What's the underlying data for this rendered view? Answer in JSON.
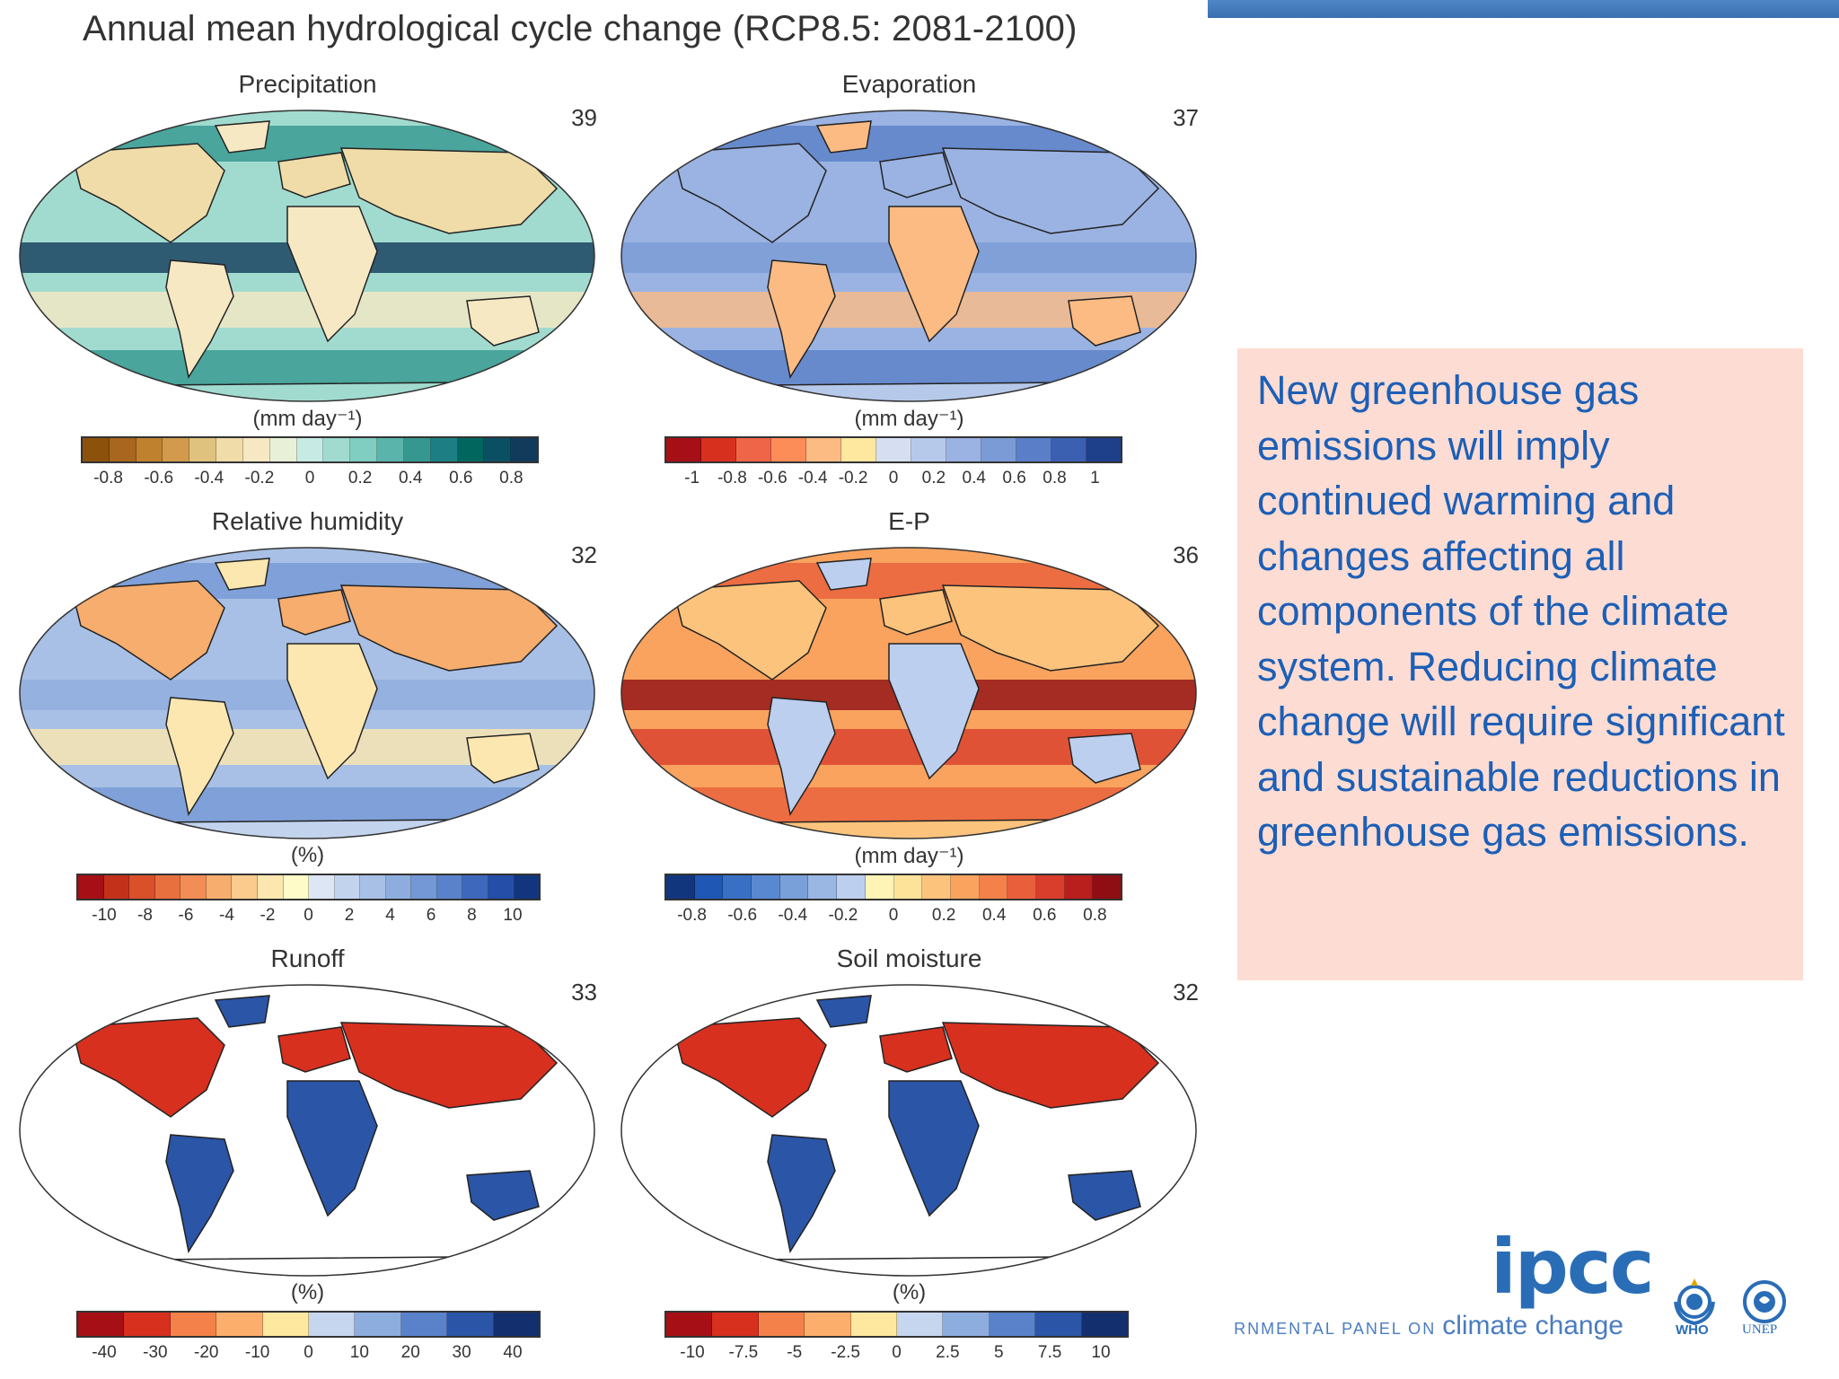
{
  "slide": {
    "figure_title": "Annual mean hydrological cycle change (RCP8.5: 2081-2100)",
    "text_box": "New greenhouse gas emissions will imply continued warming and changes affecting all components of the climate system. Reducing climate change will require significant and sustainable reductions in greenhouse gas emissions.",
    "accent_color": "#1c5fb6",
    "text_box_background": "#fddcd3"
  },
  "panels": [
    {
      "title": "Precipitation",
      "count": "39",
      "unit": "(mm day⁻¹)",
      "ticks": [
        "-0.8",
        "-0.6",
        "-0.4",
        "-0.2",
        "0",
        "0.2",
        "0.4",
        "0.6",
        "0.8"
      ],
      "colors": [
        "#8c510a",
        "#a8661e",
        "#bf812d",
        "#d19a4c",
        "#dfc27d",
        "#efdca8",
        "#f6e8c3",
        "#e8f1d8",
        "#c7eae5",
        "#a1dbd0",
        "#80cdc1",
        "#5ab4ac",
        "#35978f",
        "#1d7f83",
        "#01665e",
        "#0b4f63",
        "#123a5a"
      ],
      "map_style": "land-ocean-brown-teal"
    },
    {
      "title": "Evaporation",
      "count": "37",
      "unit": "(mm day⁻¹)",
      "ticks": [
        "-1",
        "-0.8",
        "-0.6",
        "-0.4",
        "-0.2",
        "0",
        "0.2",
        "0.4",
        "0.6",
        "0.8",
        "1"
      ],
      "colors": [
        "#a50f15",
        "#d7301f",
        "#ef6548",
        "#fc8d59",
        "#fdbb84",
        "#fee8a0",
        "#d5dff1",
        "#b6c9ea",
        "#9ab3e2",
        "#7b9bd6",
        "#5a7fc8",
        "#3b60b2",
        "#1e3f8a"
      ],
      "map_style": "mostly-blue"
    },
    {
      "title": "Relative humidity",
      "count": "32",
      "unit": "(%)",
      "ticks": [
        "-10",
        "-8",
        "-6",
        "-4",
        "-2",
        "0",
        "2",
        "4",
        "6",
        "8",
        "10"
      ],
      "colors": [
        "#a50f15",
        "#c4311b",
        "#d9502a",
        "#e8703e",
        "#f28e55",
        "#f7ad6e",
        "#fbcb8e",
        "#fde7b0",
        "#fffbc9",
        "#dde6f4",
        "#c2d3ee",
        "#a8c0e6",
        "#8eaddf",
        "#7497d5",
        "#5a82cb",
        "#3e68bc",
        "#244ea8",
        "#12367e"
      ],
      "map_style": "land-orange-ocean-blue"
    },
    {
      "title": "E-P",
      "count": "36",
      "unit": "(mm day⁻¹)",
      "ticks": [
        "-0.8",
        "-0.6",
        "-0.4",
        "-0.2",
        "0",
        "0.2",
        "0.4",
        "0.6",
        "0.8"
      ],
      "colors": [
        "#12367e",
        "#1f57b4",
        "#3a70c4",
        "#5a88d0",
        "#7aa0da",
        "#9ab7e4",
        "#bccfee",
        "#fff3b5",
        "#fde29a",
        "#fcc37c",
        "#f9a35f",
        "#f4814a",
        "#e95f3b",
        "#d93d2c",
        "#b81f1d",
        "#8e0e13"
      ],
      "map_style": "ocean-red-blue"
    },
    {
      "title": "Runoff",
      "count": "33",
      "unit": "(%)",
      "ticks": [
        "-40",
        "-30",
        "-20",
        "-10",
        "0",
        "10",
        "20",
        "30",
        "40"
      ],
      "colors": [
        "#a50f15",
        "#d7301f",
        "#f4814a",
        "#fcaf6c",
        "#fee8a0",
        "#c6d6ef",
        "#8eaddf",
        "#5a82cb",
        "#2b55a6",
        "#142f6e"
      ],
      "map_style": "land-only"
    },
    {
      "title": "Soil moisture",
      "count": "32",
      "unit": "(%)",
      "ticks": [
        "-10",
        "-7.5",
        "-5",
        "-2.5",
        "0",
        "2.5",
        "5",
        "7.5",
        "10"
      ],
      "colors": [
        "#a50f15",
        "#d7301f",
        "#f4814a",
        "#fcaf6c",
        "#fee8a0",
        "#c6d6ef",
        "#8eaddf",
        "#5a82cb",
        "#2b55a6",
        "#142f6e"
      ],
      "map_style": "land-only"
    }
  ],
  "logos": {
    "ipcc_wordmark": "ipcc",
    "ipcc_tagline_left": "RNMENTAL PANEL ON",
    "ipcc_tagline_right": "climate change",
    "who_caption": "WHO",
    "unep_caption": "UNEP",
    "logo_color": "#2a6db7",
    "icons": [
      "un-laurel-icon",
      "unep-globe-icon"
    ]
  }
}
